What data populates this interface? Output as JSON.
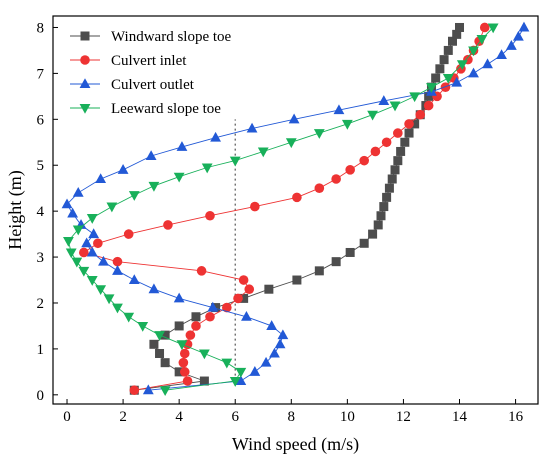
{
  "chart_data": {
    "type": "line",
    "xlabel": "Wind speed (m/s)",
    "ylabel": "Height (m)",
    "xlim": [
      -0.5,
      16.8
    ],
    "ylim": [
      -0.2,
      8.25
    ],
    "xticks": [
      0,
      2,
      4,
      6,
      8,
      10,
      12,
      14,
      16
    ],
    "yticks": [
      0,
      1,
      2,
      3,
      4,
      5,
      6,
      7,
      8
    ],
    "reference_line": {
      "x": 6,
      "y_range": [
        0.2,
        6.0
      ],
      "style": "dotted"
    },
    "legend_position": "top-left",
    "series": [
      {
        "name": "Windward slope toe",
        "color": "#4d4d4d",
        "marker": "square",
        "points": [
          [
            2.4,
            0.1
          ],
          [
            4.9,
            0.3
          ],
          [
            4.0,
            0.5
          ],
          [
            3.5,
            0.7
          ],
          [
            3.3,
            0.9
          ],
          [
            3.1,
            1.1
          ],
          [
            3.5,
            1.3
          ],
          [
            4.0,
            1.5
          ],
          [
            4.6,
            1.7
          ],
          [
            5.3,
            1.9
          ],
          [
            6.3,
            2.1
          ],
          [
            7.2,
            2.3
          ],
          [
            8.2,
            2.5
          ],
          [
            9.0,
            2.7
          ],
          [
            9.6,
            2.9
          ],
          [
            10.1,
            3.1
          ],
          [
            10.6,
            3.3
          ],
          [
            10.9,
            3.5
          ],
          [
            11.1,
            3.7
          ],
          [
            11.2,
            3.9
          ],
          [
            11.3,
            4.1
          ],
          [
            11.4,
            4.3
          ],
          [
            11.5,
            4.5
          ],
          [
            11.6,
            4.7
          ],
          [
            11.7,
            4.9
          ],
          [
            11.8,
            5.1
          ],
          [
            11.9,
            5.3
          ],
          [
            12.05,
            5.5
          ],
          [
            12.2,
            5.7
          ],
          [
            12.4,
            5.9
          ],
          [
            12.6,
            6.1
          ],
          [
            12.8,
            6.3
          ],
          [
            12.9,
            6.5
          ],
          [
            13.0,
            6.7
          ],
          [
            13.15,
            6.9
          ],
          [
            13.3,
            7.1
          ],
          [
            13.45,
            7.3
          ],
          [
            13.6,
            7.5
          ],
          [
            13.75,
            7.7
          ],
          [
            13.9,
            7.85
          ],
          [
            14.0,
            8.0
          ]
        ]
      },
      {
        "name": "Culvert inlet",
        "color": "#ee3333",
        "marker": "circle",
        "points": [
          [
            2.4,
            0.1
          ],
          [
            4.3,
            0.3
          ],
          [
            4.2,
            0.5
          ],
          [
            4.15,
            0.7
          ],
          [
            4.2,
            0.9
          ],
          [
            4.3,
            1.1
          ],
          [
            4.4,
            1.3
          ],
          [
            4.6,
            1.5
          ],
          [
            5.1,
            1.7
          ],
          [
            5.7,
            1.9
          ],
          [
            6.1,
            2.1
          ],
          [
            6.5,
            2.3
          ],
          [
            6.3,
            2.5
          ],
          [
            4.8,
            2.7
          ],
          [
            1.8,
            2.9
          ],
          [
            0.6,
            3.1
          ],
          [
            1.1,
            3.3
          ],
          [
            2.2,
            3.5
          ],
          [
            3.6,
            3.7
          ],
          [
            5.1,
            3.9
          ],
          [
            6.7,
            4.1
          ],
          [
            8.2,
            4.3
          ],
          [
            9.0,
            4.5
          ],
          [
            9.6,
            4.7
          ],
          [
            10.1,
            4.9
          ],
          [
            10.6,
            5.1
          ],
          [
            11.0,
            5.3
          ],
          [
            11.4,
            5.5
          ],
          [
            11.8,
            5.7
          ],
          [
            12.2,
            5.9
          ],
          [
            12.6,
            6.1
          ],
          [
            12.9,
            6.3
          ],
          [
            13.2,
            6.5
          ],
          [
            13.5,
            6.7
          ],
          [
            13.8,
            6.9
          ],
          [
            14.05,
            7.1
          ],
          [
            14.3,
            7.3
          ],
          [
            14.5,
            7.5
          ],
          [
            14.7,
            7.7
          ],
          [
            14.9,
            8.0
          ]
        ]
      },
      {
        "name": "Culvert outlet",
        "color": "#2259d6",
        "marker": "triangle-up",
        "points": [
          [
            2.9,
            0.1
          ],
          [
            6.2,
            0.3
          ],
          [
            6.7,
            0.5
          ],
          [
            7.1,
            0.7
          ],
          [
            7.4,
            0.9
          ],
          [
            7.6,
            1.1
          ],
          [
            7.7,
            1.3
          ],
          [
            7.3,
            1.5
          ],
          [
            6.4,
            1.7
          ],
          [
            5.2,
            1.9
          ],
          [
            4.0,
            2.1
          ],
          [
            3.1,
            2.3
          ],
          [
            2.4,
            2.5
          ],
          [
            1.8,
            2.7
          ],
          [
            1.3,
            2.9
          ],
          [
            0.9,
            3.1
          ],
          [
            0.7,
            3.3
          ],
          [
            0.95,
            3.5
          ],
          [
            0.5,
            3.7
          ],
          [
            0.2,
            3.95
          ],
          [
            0.0,
            4.15
          ],
          [
            0.4,
            4.4
          ],
          [
            1.2,
            4.7
          ],
          [
            2.0,
            4.9
          ],
          [
            3.0,
            5.2
          ],
          [
            4.1,
            5.4
          ],
          [
            5.3,
            5.6
          ],
          [
            6.6,
            5.8
          ],
          [
            8.1,
            6.0
          ],
          [
            9.7,
            6.2
          ],
          [
            11.3,
            6.4
          ],
          [
            13.0,
            6.6
          ],
          [
            13.9,
            6.8
          ],
          [
            14.5,
            7.0
          ],
          [
            15.0,
            7.2
          ],
          [
            15.5,
            7.4
          ],
          [
            15.85,
            7.6
          ],
          [
            16.1,
            7.8
          ],
          [
            16.3,
            8.0
          ]
        ]
      },
      {
        "name": "Leeward slope toe",
        "color": "#18b05a",
        "marker": "triangle-down",
        "points": [
          [
            3.5,
            0.1
          ],
          [
            6.0,
            0.3
          ],
          [
            6.2,
            0.5
          ],
          [
            5.7,
            0.7
          ],
          [
            4.9,
            0.9
          ],
          [
            4.1,
            1.1
          ],
          [
            3.3,
            1.3
          ],
          [
            2.7,
            1.5
          ],
          [
            2.2,
            1.7
          ],
          [
            1.8,
            1.9
          ],
          [
            1.5,
            2.1
          ],
          [
            1.2,
            2.3
          ],
          [
            0.9,
            2.5
          ],
          [
            0.6,
            2.7
          ],
          [
            0.35,
            2.9
          ],
          [
            0.15,
            3.1
          ],
          [
            0.05,
            3.35
          ],
          [
            0.4,
            3.6
          ],
          [
            0.9,
            3.85
          ],
          [
            1.6,
            4.1
          ],
          [
            2.4,
            4.35
          ],
          [
            3.1,
            4.55
          ],
          [
            4.0,
            4.75
          ],
          [
            5.0,
            4.95
          ],
          [
            6.0,
            5.1
          ],
          [
            7.0,
            5.3
          ],
          [
            8.0,
            5.5
          ],
          [
            9.0,
            5.7
          ],
          [
            10.0,
            5.9
          ],
          [
            10.9,
            6.1
          ],
          [
            11.7,
            6.3
          ],
          [
            12.4,
            6.5
          ],
          [
            13.0,
            6.7
          ],
          [
            13.6,
            6.9
          ],
          [
            14.1,
            7.2
          ],
          [
            14.5,
            7.5
          ],
          [
            14.8,
            7.75
          ],
          [
            15.2,
            8.0
          ]
        ]
      }
    ]
  }
}
